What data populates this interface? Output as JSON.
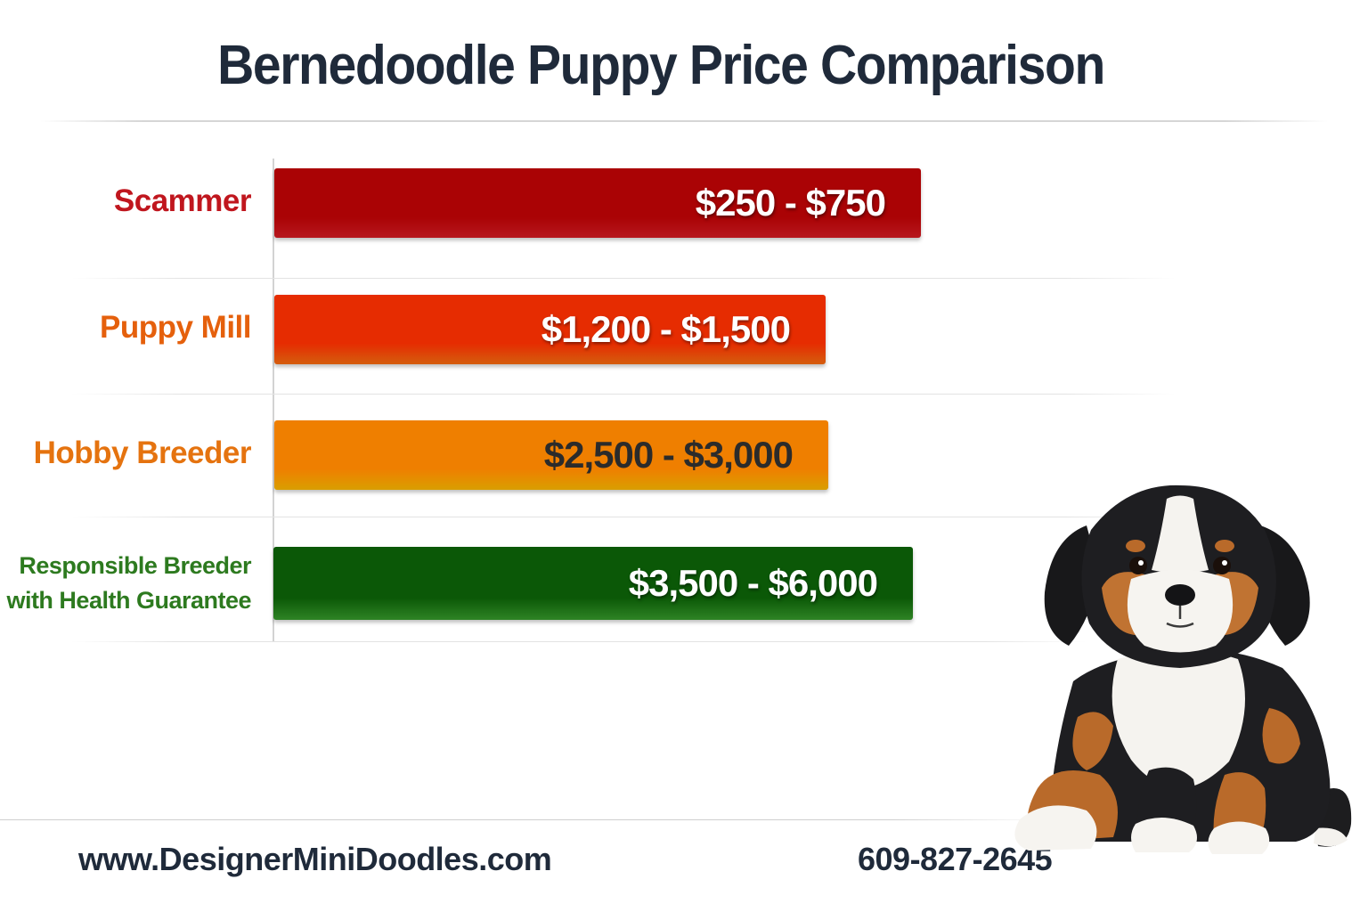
{
  "title": "Bernedoodle Puppy Price Comparison",
  "chart_data": {
    "type": "bar",
    "orientation": "horizontal",
    "categories": [
      "Scammer",
      "Puppy Mill",
      "Hobby Breeder",
      "Responsible Breeder with Health Guarantee"
    ],
    "category_lines": [
      [
        "Scammer"
      ],
      [
        "Puppy Mill"
      ],
      [
        "Hobby Breeder"
      ],
      [
        "Responsible Breeder",
        "with Health Guarantee"
      ]
    ],
    "data_labels": [
      "$250 - $750",
      "$1,200 - $1,500",
      "$2,500 - $3,000",
      "$3,500 - $6,000"
    ],
    "ranges": [
      [
        250,
        750
      ],
      [
        1200,
        1500
      ],
      [
        2500,
        3000
      ],
      [
        3500,
        6000
      ]
    ],
    "colors": {
      "scammer": "#d01a22",
      "puppy_mill": "#f26a10",
      "hobby_breeder": "#f7b400",
      "responsible_breeder": "#35962a"
    },
    "label_colors": [
      "#c0161e",
      "#e5600c",
      "#e5730f",
      "#2d7a1f"
    ],
    "grid": false,
    "legend": "none"
  },
  "footer": {
    "website": "www.DesignerMiniDoodles.com",
    "phone": "609-827-2645"
  },
  "illustration": "bernedoodle-puppy"
}
